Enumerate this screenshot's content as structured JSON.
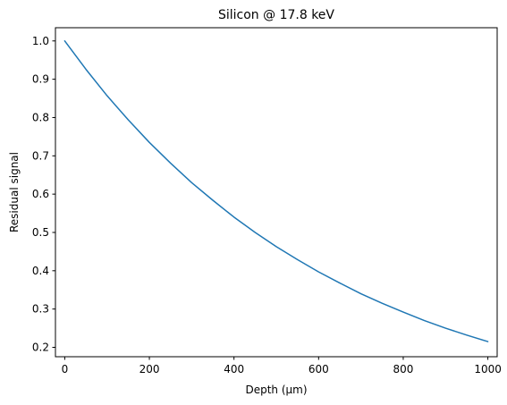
{
  "chart_data": {
    "type": "line",
    "title": "Silicon @ 17.8 keV",
    "xlabel": "Depth (µm)",
    "ylabel": "Residual signal",
    "xlim": [
      -22,
      1022
    ],
    "ylim": [
      0.1755,
      1.0345
    ],
    "x_ticks": [
      0,
      200,
      400,
      600,
      800,
      1000
    ],
    "y_ticks": [
      0.2,
      0.3,
      0.4,
      0.5,
      0.6,
      0.7,
      0.8,
      0.9,
      1.0
    ],
    "x_tick_labels": [
      "0",
      "200",
      "400",
      "600",
      "800",
      "1000"
    ],
    "y_tick_labels": [
      "0.2",
      "0.3",
      "0.4",
      "0.5",
      "0.6",
      "0.7",
      "0.8",
      "0.9",
      "1.0"
    ],
    "grid": false,
    "series": [
      {
        "color": "#1f77b4",
        "x": [
          0,
          50,
          100,
          150,
          200,
          250,
          300,
          350,
          400,
          450,
          500,
          550,
          600,
          650,
          700,
          750,
          800,
          850,
          900,
          950,
          1000
        ],
        "y": [
          1.0,
          0.926,
          0.857,
          0.794,
          0.735,
          0.681,
          0.63,
          0.584,
          0.54,
          0.5,
          0.463,
          0.429,
          0.397,
          0.368,
          0.34,
          0.315,
          0.292,
          0.27,
          0.25,
          0.232,
          0.215
        ]
      }
    ]
  }
}
